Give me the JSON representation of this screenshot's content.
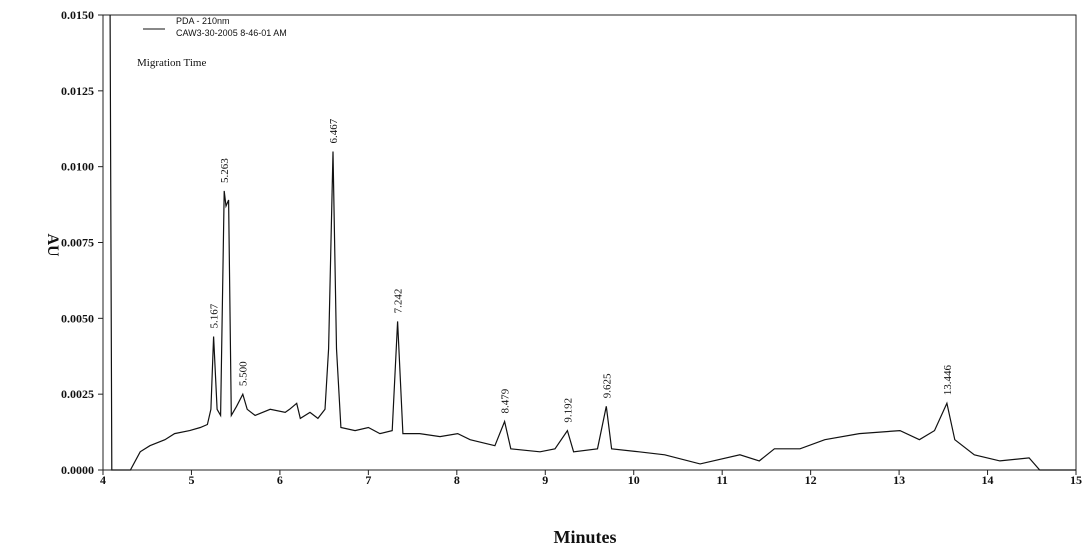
{
  "chart_data": {
    "type": "line",
    "subtitle": "Migration Time",
    "sample_label": "CAW3-30-2005 8-46-01 AM",
    "xlabel": "Minutes",
    "ylabel": "AU",
    "xlim": [
      4,
      15
    ],
    "ylim": [
      0,
      0.015
    ],
    "xticks": [
      4,
      5,
      6,
      7,
      8,
      9,
      10,
      11,
      12,
      13,
      14,
      15
    ],
    "yticks": [
      {
        "value": 0,
        "label": "0.0000"
      },
      {
        "value": 0.0025,
        "label": "0.0025"
      },
      {
        "value": 0.005,
        "label": "0.0050"
      },
      {
        "value": 0.0075,
        "label": "0.0075"
      },
      {
        "value": 0.01,
        "label": "0.0100"
      },
      {
        "value": 0.0125,
        "label": "0.0125"
      },
      {
        "value": 0.015,
        "label": "0.0150"
      }
    ],
    "x": [
      4.08,
      4.1,
      4.31,
      4.42,
      4.53,
      4.7,
      4.81,
      4.98,
      5.1,
      5.18,
      5.22,
      5.25,
      5.29,
      5.33,
      5.37,
      5.39,
      5.42,
      5.45,
      5.51,
      5.58,
      5.63,
      5.72,
      5.89,
      6.06,
      6.11,
      6.19,
      6.23,
      6.34,
      6.43,
      6.51,
      6.55,
      6.6,
      6.64,
      6.69,
      6.85,
      7.0,
      7.13,
      7.27,
      7.33,
      7.39,
      7.58,
      7.81,
      8.01,
      8.15,
      8.43,
      8.54,
      8.61,
      8.94,
      9.11,
      9.25,
      9.32,
      9.59,
      9.69,
      9.75,
      10.06,
      10.35,
      10.75,
      11.2,
      11.42,
      11.59,
      11.88,
      12.16,
      12.55,
      13.01,
      13.23,
      13.4,
      13.54,
      13.63,
      13.85,
      14.14,
      14.47,
      14.59,
      15.0
    ],
    "series": [
      {
        "name": "PDA - 210nm",
        "color": "#111111",
        "values": [
          0.015,
          0.0,
          0.0,
          0.0006,
          0.0008,
          0.001,
          0.0012,
          0.0013,
          0.0014,
          0.0015,
          0.002,
          0.0044,
          0.002,
          0.0018,
          0.0092,
          0.0087,
          0.0089,
          0.0018,
          0.0021,
          0.0025,
          0.002,
          0.0018,
          0.002,
          0.0019,
          0.002,
          0.0022,
          0.0017,
          0.0019,
          0.0017,
          0.002,
          0.004,
          0.0105,
          0.004,
          0.0014,
          0.0013,
          0.0014,
          0.0012,
          0.0013,
          0.0049,
          0.0012,
          0.0012,
          0.0011,
          0.0012,
          0.001,
          0.0008,
          0.0016,
          0.0007,
          0.0006,
          0.0007,
          0.0013,
          0.0006,
          0.0007,
          0.0021,
          0.0007,
          0.0006,
          0.0005,
          0.0002,
          0.0005,
          0.0003,
          0.0007,
          0.0007,
          0.001,
          0.0012,
          0.0013,
          0.001,
          0.0013,
          0.0022,
          0.001,
          0.0005,
          0.0003,
          0.0004,
          0.0,
          0.0
        ]
      }
    ],
    "annotations": [
      {
        "x": 5.25,
        "y": 0.0044,
        "text": "5.167"
      },
      {
        "x": 5.37,
        "y": 0.0092,
        "text": "5.263"
      },
      {
        "x": 5.58,
        "y": 0.0025,
        "text": "5.500"
      },
      {
        "x": 6.6,
        "y": 0.0105,
        "text": "6.467"
      },
      {
        "x": 7.33,
        "y": 0.0049,
        "text": "7.242"
      },
      {
        "x": 8.54,
        "y": 0.0016,
        "text": "8.479"
      },
      {
        "x": 9.25,
        "y": 0.0013,
        "text": "9.192"
      },
      {
        "x": 9.69,
        "y": 0.0021,
        "text": "9.625"
      },
      {
        "x": 13.54,
        "y": 0.0022,
        "text": "13.446"
      }
    ]
  }
}
